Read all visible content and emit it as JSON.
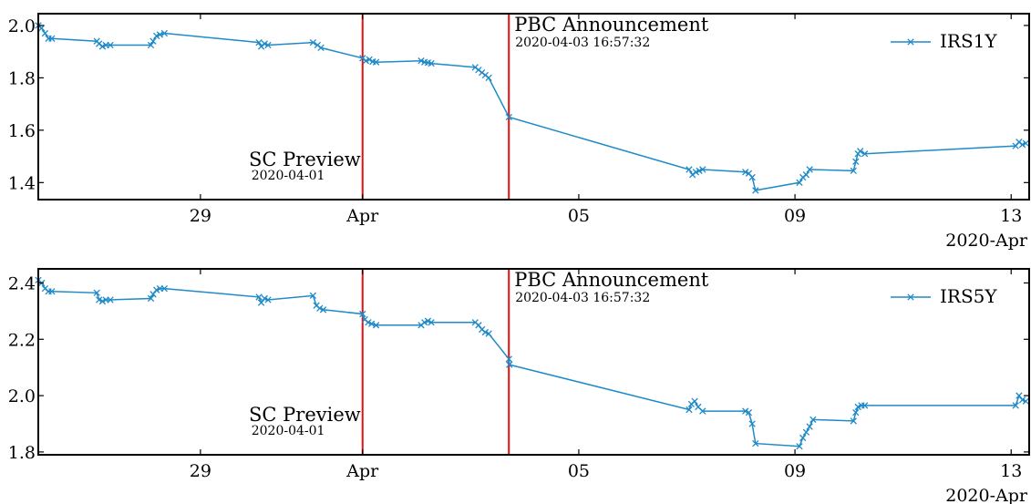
{
  "chart_data": [
    {
      "type": "line",
      "series": [
        {
          "name": "IRS1Y",
          "color": "#1f8ac8",
          "marker": "x",
          "points": [
            [
              "2020-03-26 00:00",
              2.0
            ],
            [
              "2020-03-26 01:30",
              1.99
            ],
            [
              "2020-03-26 03:00",
              1.97
            ],
            [
              "2020-03-26 04:30",
              1.95
            ],
            [
              "2020-03-26 06:00",
              1.95
            ],
            [
              "2020-03-27 02:00",
              1.94
            ],
            [
              "2020-03-27 03:00",
              1.93
            ],
            [
              "2020-03-27 04:30",
              1.92
            ],
            [
              "2020-03-27 06:00",
              1.925
            ],
            [
              "2020-03-27 08:00",
              1.925
            ],
            [
              "2020-03-28 02:00",
              1.925
            ],
            [
              "2020-03-28 03:00",
              1.94
            ],
            [
              "2020-03-28 04:30",
              1.96
            ],
            [
              "2020-03-28 06:00",
              1.965
            ],
            [
              "2020-03-28 08:00",
              1.97
            ],
            [
              "2020-03-30 02:00",
              1.935
            ],
            [
              "2020-03-30 03:00",
              1.92
            ],
            [
              "2020-03-30 04:30",
              1.93
            ],
            [
              "2020-03-30 06:00",
              1.925
            ],
            [
              "2020-03-31 02:00",
              1.935
            ],
            [
              "2020-03-31 04:00",
              1.925
            ],
            [
              "2020-03-31 05:30",
              1.915
            ],
            [
              "2020-04-01 00:00",
              1.875
            ],
            [
              "2020-04-01 01:30",
              1.865
            ],
            [
              "2020-04-01 03:00",
              1.87
            ],
            [
              "2020-04-01 04:30",
              1.862
            ],
            [
              "2020-04-01 06:00",
              1.86
            ],
            [
              "2020-04-02 02:00",
              1.865
            ],
            [
              "2020-04-02 03:30",
              1.86
            ],
            [
              "2020-04-02 05:00",
              1.858
            ],
            [
              "2020-04-02 06:30",
              1.855
            ],
            [
              "2020-04-03 02:00",
              1.84
            ],
            [
              "2020-04-03 03:30",
              1.83
            ],
            [
              "2020-04-03 05:00",
              1.82
            ],
            [
              "2020-04-03 06:30",
              1.81
            ],
            [
              "2020-04-03 08:00",
              1.8
            ],
            [
              "2020-04-03 17:00",
              1.65
            ],
            [
              "2020-04-07 01:00",
              1.45
            ],
            [
              "2020-04-07 02:30",
              1.43
            ],
            [
              "2020-04-07 04:00",
              1.44
            ],
            [
              "2020-04-07 05:30",
              1.445
            ],
            [
              "2020-04-07 07:00",
              1.45
            ],
            [
              "2020-04-08 02:00",
              1.44
            ],
            [
              "2020-04-08 03:30",
              1.435
            ],
            [
              "2020-04-08 05:00",
              1.42
            ],
            [
              "2020-04-08 06:30",
              1.37
            ],
            [
              "2020-04-09 02:00",
              1.4
            ],
            [
              "2020-04-09 03:30",
              1.42
            ],
            [
              "2020-04-09 05:00",
              1.43
            ],
            [
              "2020-04-09 06:30",
              1.45
            ],
            [
              "2020-04-10 02:00",
              1.445
            ],
            [
              "2020-04-10 03:00",
              1.48
            ],
            [
              "2020-04-10 04:00",
              1.51
            ],
            [
              "2020-04-10 05:00",
              1.52
            ],
            [
              "2020-04-10 07:00",
              1.51
            ],
            [
              "2020-04-13 02:00",
              1.54
            ],
            [
              "2020-04-13 03:30",
              1.555
            ],
            [
              "2020-04-13 05:00",
              1.545
            ],
            [
              "2020-04-13 06:30",
              1.55
            ]
          ]
        }
      ],
      "xlim": [
        "2020-03-26 00:00",
        "2020-04-13 08:00"
      ],
      "ylim": [
        1.335,
        2.045
      ],
      "x_ticks": [
        {
          "date": "2020-03-29",
          "label": "29"
        },
        {
          "date": "2020-04-01",
          "label": "Apr"
        },
        {
          "date": "2020-04-05",
          "label": "05"
        },
        {
          "date": "2020-04-09",
          "label": "09"
        },
        {
          "date": "2020-04-13",
          "label": "13"
        }
      ],
      "y_ticks": [
        {
          "value": 1.4,
          "label": "1.4"
        },
        {
          "value": 1.6,
          "label": "1.6"
        },
        {
          "value": 1.8,
          "label": "1.8"
        },
        {
          "value": 2.0,
          "label": "2.0"
        }
      ],
      "x_offset_label": "2020-Apr",
      "vlines": [
        {
          "date": "2020-04-01 00:00",
          "label": "SC Preview",
          "sublabel": "2020-04-01",
          "label_position": "bottom-left",
          "color": "#e8100f"
        },
        {
          "date": "2020-04-03 16:57",
          "label": "PBC Announcement",
          "sublabel": "2020-04-03 16:57:32",
          "label_position": "top-right",
          "color": "#e8100f"
        }
      ],
      "legend": {
        "placement": "top-right"
      },
      "grid": false
    },
    {
      "type": "line",
      "series": [
        {
          "name": "IRS5Y",
          "color": "#1f8ac8",
          "marker": "x",
          "points": [
            [
              "2020-03-26 00:00",
              2.41
            ],
            [
              "2020-03-26 01:30",
              2.4
            ],
            [
              "2020-03-26 03:00",
              2.38
            ],
            [
              "2020-03-26 04:30",
              2.37
            ],
            [
              "2020-03-26 06:00",
              2.37
            ],
            [
              "2020-03-27 02:00",
              2.365
            ],
            [
              "2020-03-27 03:00",
              2.34
            ],
            [
              "2020-03-27 04:30",
              2.335
            ],
            [
              "2020-03-27 06:00",
              2.34
            ],
            [
              "2020-03-27 08:00",
              2.34
            ],
            [
              "2020-03-28 02:00",
              2.345
            ],
            [
              "2020-03-28 03:00",
              2.36
            ],
            [
              "2020-03-28 04:30",
              2.375
            ],
            [
              "2020-03-28 06:00",
              2.38
            ],
            [
              "2020-03-28 08:00",
              2.38
            ],
            [
              "2020-03-30 02:00",
              2.35
            ],
            [
              "2020-03-30 03:00",
              2.33
            ],
            [
              "2020-03-30 04:30",
              2.345
            ],
            [
              "2020-03-30 06:00",
              2.34
            ],
            [
              "2020-03-31 02:00",
              2.355
            ],
            [
              "2020-03-31 03:30",
              2.32
            ],
            [
              "2020-03-31 05:00",
              2.31
            ],
            [
              "2020-03-31 06:30",
              2.305
            ],
            [
              "2020-04-01 00:00",
              2.29
            ],
            [
              "2020-04-01 01:00",
              2.27
            ],
            [
              "2020-04-01 02:30",
              2.26
            ],
            [
              "2020-04-01 04:00",
              2.255
            ],
            [
              "2020-04-01 06:00",
              2.25
            ],
            [
              "2020-04-02 02:00",
              2.25
            ],
            [
              "2020-04-02 03:30",
              2.26
            ],
            [
              "2020-04-02 05:00",
              2.265
            ],
            [
              "2020-04-02 06:30",
              2.26
            ],
            [
              "2020-04-03 02:00",
              2.26
            ],
            [
              "2020-04-03 03:30",
              2.25
            ],
            [
              "2020-04-03 05:00",
              2.235
            ],
            [
              "2020-04-03 06:30",
              2.225
            ],
            [
              "2020-04-03 08:00",
              2.22
            ],
            [
              "2020-04-03 17:00",
              2.13
            ],
            [
              "2020-04-03 17:10",
              2.11
            ],
            [
              "2020-04-07 01:00",
              1.95
            ],
            [
              "2020-04-07 02:00",
              1.97
            ],
            [
              "2020-04-07 03:30",
              1.98
            ],
            [
              "2020-04-07 05:00",
              1.96
            ],
            [
              "2020-04-07 07:00",
              1.945
            ],
            [
              "2020-04-08 02:00",
              1.945
            ],
            [
              "2020-04-08 03:30",
              1.94
            ],
            [
              "2020-04-08 05:00",
              1.9
            ],
            [
              "2020-04-08 06:30",
              1.83
            ],
            [
              "2020-04-09 02:00",
              1.82
            ],
            [
              "2020-04-09 03:30",
              1.85
            ],
            [
              "2020-04-09 05:00",
              1.87
            ],
            [
              "2020-04-09 06:30",
              1.89
            ],
            [
              "2020-04-09 08:00",
              1.915
            ],
            [
              "2020-04-10 02:00",
              1.91
            ],
            [
              "2020-04-10 03:00",
              1.94
            ],
            [
              "2020-04-10 04:00",
              1.96
            ],
            [
              "2020-04-10 05:30",
              1.965
            ],
            [
              "2020-04-10 07:00",
              1.965
            ],
            [
              "2020-04-13 02:00",
              1.965
            ],
            [
              "2020-04-13 03:30",
              2.0
            ],
            [
              "2020-04-13 05:00",
              1.985
            ],
            [
              "2020-04-13 06:30",
              1.98
            ]
          ]
        }
      ],
      "xlim": [
        "2020-03-26 00:00",
        "2020-04-13 08:00"
      ],
      "ylim": [
        1.79,
        2.45
      ],
      "x_ticks": [
        {
          "date": "2020-03-29",
          "label": "29"
        },
        {
          "date": "2020-04-01",
          "label": "Apr"
        },
        {
          "date": "2020-04-05",
          "label": "05"
        },
        {
          "date": "2020-04-09",
          "label": "09"
        },
        {
          "date": "2020-04-13",
          "label": "13"
        }
      ],
      "y_ticks": [
        {
          "value": 1.8,
          "label": "1.8"
        },
        {
          "value": 2.0,
          "label": "2.0"
        },
        {
          "value": 2.2,
          "label": "2.2"
        },
        {
          "value": 2.4,
          "label": "2.4"
        }
      ],
      "x_offset_label": "2020-Apr",
      "vlines": [
        {
          "date": "2020-04-01 00:00",
          "label": "SC Preview",
          "sublabel": "2020-04-01",
          "label_position": "bottom-left",
          "color": "#e8100f"
        },
        {
          "date": "2020-04-03 16:57",
          "label": "PBC Announcement",
          "sublabel": "2020-04-03 16:57:32",
          "label_position": "top-right",
          "color": "#e8100f"
        }
      ],
      "legend": {
        "placement": "top-right"
      },
      "grid": false
    }
  ]
}
